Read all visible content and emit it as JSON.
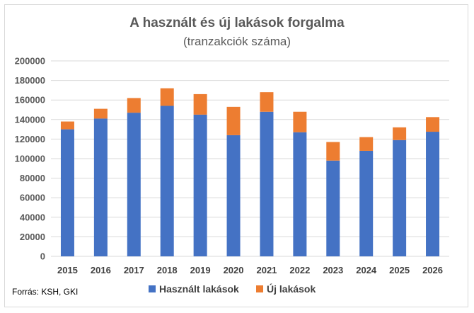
{
  "chart_data": {
    "type": "bar",
    "stacked": true,
    "title": "A használt és új lakások forgalma",
    "subtitle": "(tranzakciók száma)",
    "categories": [
      "2015",
      "2016",
      "2017",
      "2018",
      "2019",
      "2020",
      "2021",
      "2022",
      "2023",
      "2024",
      "2025",
      "2026"
    ],
    "series": [
      {
        "name": "Használt lakások",
        "color": "#4472c4",
        "values": [
          130000,
          141000,
          147000,
          154000,
          145000,
          124000,
          148000,
          127000,
          98000,
          108000,
          119000,
          127500
        ]
      },
      {
        "name": "Új lakások",
        "color": "#ed7d31",
        "values": [
          8000,
          10000,
          15000,
          18000,
          21000,
          29000,
          20000,
          21000,
          19000,
          14000,
          13000,
          15000
        ]
      }
    ],
    "ylim": [
      0,
      200000
    ],
    "yticks": [
      "0",
      "20000",
      "40000",
      "60000",
      "80000",
      "100000",
      "120000",
      "140000",
      "160000",
      "180000",
      "200000"
    ],
    "grid": true,
    "legend": "bottom",
    "source": "Forrás: KSH, GKI"
  }
}
